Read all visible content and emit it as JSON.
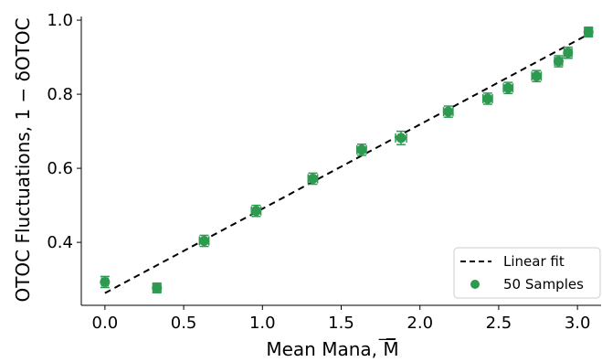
{
  "colors": {
    "marker": "#2e9a4f",
    "fit_line": "#000000",
    "axes": "#000000",
    "background": "#ffffff"
  },
  "chart_data": {
    "type": "scatter",
    "xlabel": "Mean Mana, M̅",
    "ylabel": "OTOC Fluctuations, 1 − δOTOC",
    "xlim": [
      -0.15,
      3.15
    ],
    "ylim": [
      0.23,
      1.01
    ],
    "grid": false,
    "legend_placement": "lower-right",
    "x_ticks": [
      0.0,
      0.5,
      1.0,
      1.5,
      2.0,
      2.5,
      3.0
    ],
    "x_tick_labels": [
      "0.0",
      "0.5",
      "1.0",
      "1.5",
      "2.0",
      "2.5",
      "3.0"
    ],
    "y_ticks": [
      0.4,
      0.6,
      0.8,
      1.0
    ],
    "y_tick_labels": [
      "0.4",
      "0.6",
      "0.8",
      "1.0"
    ],
    "legend": [
      {
        "label": "Linear fit",
        "style": "dashed-line"
      },
      {
        "label": "50 Samples",
        "style": "marker"
      }
    ],
    "series": [
      {
        "name": "50 Samples",
        "kind": "points-with-errorbars",
        "points": [
          {
            "x": 0.0,
            "y": 0.293,
            "xerr": 0.02,
            "yerr": 0.015
          },
          {
            "x": 0.33,
            "y": 0.277,
            "xerr": 0.025,
            "yerr": 0.013
          },
          {
            "x": 0.63,
            "y": 0.404,
            "xerr": 0.03,
            "yerr": 0.015
          },
          {
            "x": 0.96,
            "y": 0.485,
            "xerr": 0.03,
            "yerr": 0.015
          },
          {
            "x": 1.32,
            "y": 0.572,
            "xerr": 0.03,
            "yerr": 0.015
          },
          {
            "x": 1.63,
            "y": 0.65,
            "xerr": 0.03,
            "yerr": 0.015
          },
          {
            "x": 1.88,
            "y": 0.682,
            "xerr": 0.035,
            "yerr": 0.018
          },
          {
            "x": 2.18,
            "y": 0.753,
            "xerr": 0.03,
            "yerr": 0.015
          },
          {
            "x": 2.43,
            "y": 0.788,
            "xerr": 0.03,
            "yerr": 0.015
          },
          {
            "x": 2.56,
            "y": 0.817,
            "xerr": 0.03,
            "yerr": 0.015
          },
          {
            "x": 2.74,
            "y": 0.849,
            "xerr": 0.03,
            "yerr": 0.015
          },
          {
            "x": 2.88,
            "y": 0.889,
            "xerr": 0.025,
            "yerr": 0.015
          },
          {
            "x": 2.94,
            "y": 0.912,
            "xerr": 0.025,
            "yerr": 0.015
          },
          {
            "x": 3.07,
            "y": 0.968,
            "xerr": 0.025,
            "yerr": 0.013
          }
        ]
      },
      {
        "name": "Linear fit",
        "kind": "dashed-line",
        "x": [
          0.0,
          3.07
        ],
        "y": [
          0.263,
          0.962
        ]
      }
    ]
  }
}
